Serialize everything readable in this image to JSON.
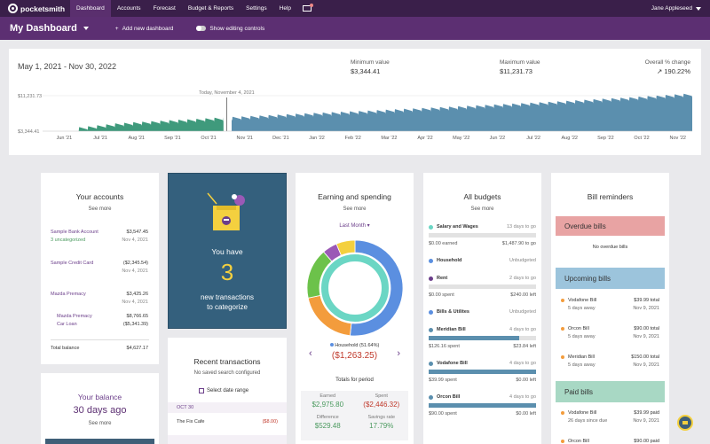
{
  "nav": {
    "brand": "pocketsmith",
    "items": [
      "Dashboard",
      "Accounts",
      "Forecast",
      "Budget & Reports",
      "Settings",
      "Help"
    ],
    "user": "Jane Appleseed"
  },
  "dashboard": {
    "title": "My Dashboard",
    "add_label": "Add new dashboard",
    "toggle_label": "Show editing controls"
  },
  "overview": {
    "range": "May 1, 2021 - Nov 30, 2022",
    "min_label": "Minimum value",
    "min_value": "$3,344.41",
    "max_label": "Maximum value",
    "max_value": "$11,231.73",
    "change_label": "Overall % change",
    "change_value": "190.22%",
    "today_label": "Today, November 4, 2021"
  },
  "chart_data": {
    "type": "area",
    "y_ticks": [
      "$11,231.73",
      "$3,344.41"
    ],
    "x_ticks": [
      "Jun '21",
      "Jul '21",
      "Aug '21",
      "Sep '21",
      "Oct '21",
      "Nov '21",
      "Dec '21",
      "Jan '22",
      "Feb '22",
      "Mar '22",
      "Apr '22",
      "May '22",
      "Jun '22",
      "Jul '22",
      "Aug '22",
      "Sep '22",
      "Oct '22",
      "Nov '22"
    ],
    "ylim": [
      3344.41,
      11231.73
    ],
    "trend": [
      3344.41,
      3344.41,
      4200,
      4700,
      5100,
      5550,
      5950,
      6350,
      6700,
      7050,
      7450,
      7800,
      8200,
      8600,
      9000,
      9450,
      9900,
      10400,
      10900
    ],
    "colors": {
      "past": "#3f9a7c",
      "future": "#5b8fae"
    }
  },
  "accounts": {
    "title": "Your accounts",
    "see_more": "See more",
    "rows": [
      {
        "name": "Sample Bank Account",
        "amount": "$3,547.45",
        "sub": "3 uncategorized",
        "date": "Nov 4, 2021"
      },
      {
        "name": "Sample Credit Card",
        "amount": "($2,345.54)",
        "sub": "",
        "date": "Nov 4, 2021"
      },
      {
        "name": "Mazda Premacy",
        "amount": "$3,425.26",
        "sub": "",
        "date": "Nov 4, 2021"
      }
    ],
    "sub_rows": [
      {
        "name": "Mazda Premacy",
        "amount": "$8,766.65"
      },
      {
        "name": "Car Loan",
        "amount": "($5,341.39)"
      }
    ],
    "total_label": "Total balance",
    "total": "$4,627.17"
  },
  "balance": {
    "title": "Your balance",
    "period": "30 days ago",
    "see_more": "See more"
  },
  "uncat": {
    "line1": "You have",
    "count": "3",
    "line2": "new transactions",
    "line3": "to categorize"
  },
  "recent": {
    "title": "Recent transactions",
    "subtitle": "No saved search configured",
    "select_label": "Select date range",
    "group": "OCT 30",
    "tx_name": "The Fix Cafe",
    "tx_amount": "($8.00)"
  },
  "earning": {
    "title": "Earning and spending",
    "see_more": "See more",
    "period": "Last Month",
    "selected_label": "Household (51.64%)",
    "selected_amount": "($1,263.25)",
    "totals_label": "Totals for period",
    "earned_label": "Earned",
    "earned": "$2,975.80",
    "spent_label": "Spent",
    "spent": "($2,446.32)",
    "diff_label": "Difference",
    "diff": "$529.48",
    "savings_label": "Savings rate",
    "savings": "17.79%",
    "donut": {
      "outer": [
        {
          "name": "Household",
          "pct": 51.64,
          "color": "#5b8fe0"
        },
        {
          "name": "Orange",
          "pct": 20,
          "color": "#f39c3c"
        },
        {
          "name": "Green",
          "pct": 17,
          "color": "#6cc24a"
        },
        {
          "name": "Purple",
          "pct": 5,
          "color": "#9b59b6"
        },
        {
          "name": "Yellow",
          "pct": 6.36,
          "color": "#f4d03f"
        }
      ],
      "inner_color": "#6bd6c4"
    }
  },
  "budgets": {
    "title": "All budgets",
    "see_more": "See more",
    "items": [
      {
        "name": "Salary and Wages",
        "status": "13 days to go",
        "left": "$0.00 earned",
        "right": "$1,487.90 to go",
        "fill": 0,
        "color": "#6bd6c4"
      },
      {
        "name": "Household",
        "status": "Unbudgeted",
        "left": "",
        "right": "",
        "fill": 0,
        "color": "#5b8fe0"
      },
      {
        "name": "Rent",
        "status": "2 days to go",
        "left": "$0.00 spent",
        "right": "$240.00 left",
        "fill": 0,
        "color": "#6b3e8a"
      },
      {
        "name": "Bills & Utilites",
        "status": "Unbudgeted",
        "left": "",
        "right": "",
        "fill": 0,
        "color": "#5b8fe0"
      },
      {
        "name": "Meridian Bill",
        "status": "4 days to go",
        "left": "$126.16 spent",
        "right": "$23.84 left",
        "fill": 0.84,
        "color": "#5b8fae"
      },
      {
        "name": "Vodafone Bill",
        "status": "4 days to go",
        "left": "$39.99 spent",
        "right": "$0.00 left",
        "fill": 1,
        "color": "#5b8fae"
      },
      {
        "name": "Orcon Bill",
        "status": "4 days to go",
        "left": "$90.00 spent",
        "right": "$0.00 left",
        "fill": 1,
        "color": "#5b8fae"
      }
    ]
  },
  "reminders": {
    "title": "Bill reminders",
    "overdue_title": "Overdue bills",
    "overdue_empty": "No overdue bills",
    "upcoming_title": "Upcoming bills",
    "upcoming": [
      {
        "name": "Vodafone Bill",
        "amount": "$39.99 total",
        "when": "5 days away",
        "date": "Nov 9, 2021"
      },
      {
        "name": "Orcon Bill",
        "amount": "$90.00 total",
        "when": "5 days away",
        "date": "Nov 9, 2021"
      },
      {
        "name": "Meridian Bill",
        "amount": "$150.00 total",
        "when": "5 days away",
        "date": "Nov 9, 2021"
      }
    ],
    "paid_title": "Paid bills",
    "paid": [
      {
        "name": "Vodafone Bill",
        "amount": "$39.99 paid",
        "when": "26 days since due",
        "date": "Nov 9, 2021"
      },
      {
        "name": "Orcon Bill",
        "amount": "$90.00 paid",
        "when": "",
        "date": ""
      }
    ]
  }
}
